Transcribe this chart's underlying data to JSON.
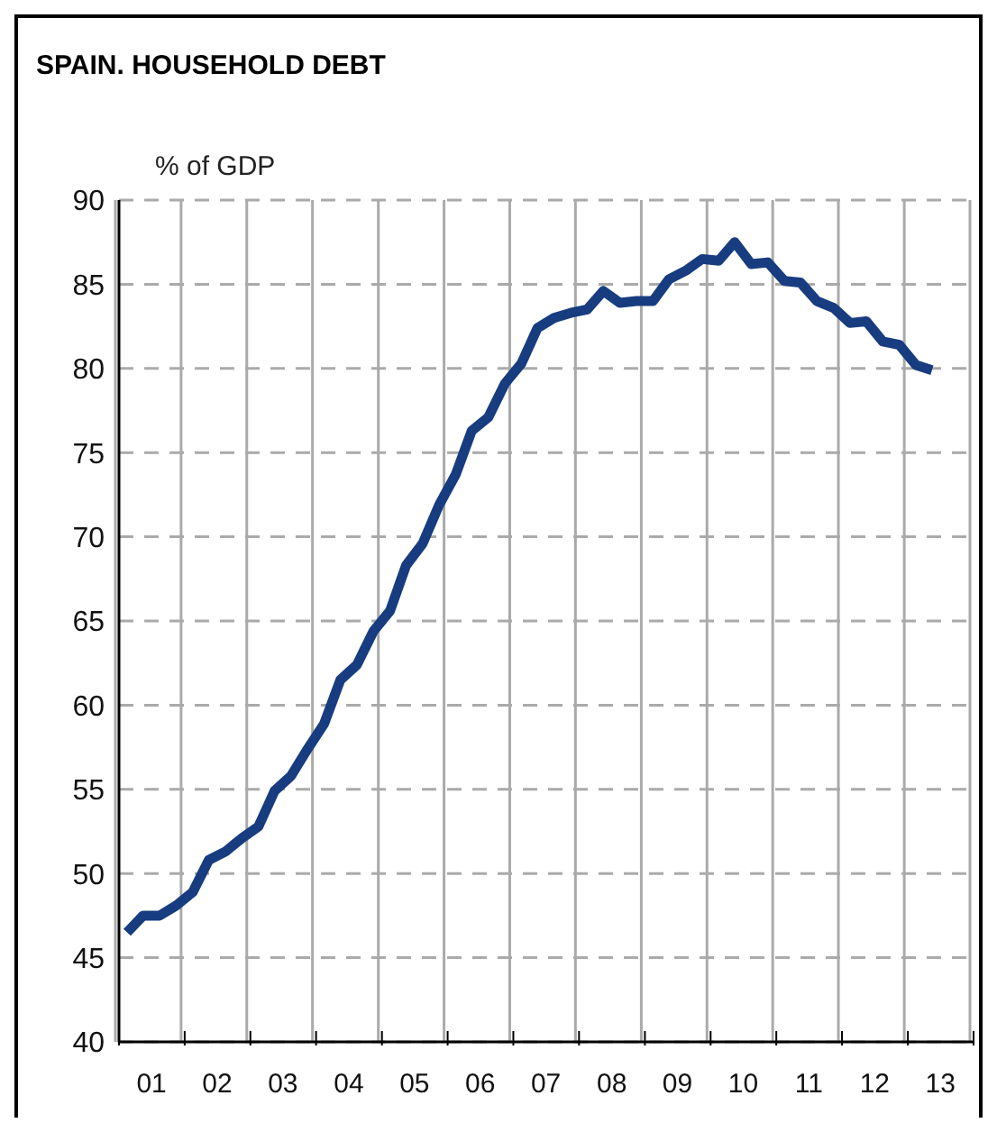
{
  "chart_data": {
    "type": "line",
    "title": "SPAIN. HOUSEHOLD DEBT",
    "ylabel": "% of GDP",
    "x": [
      "2001-02-15",
      "2001-05-15",
      "2001-08-15",
      "2001-11-15",
      "2002-02-15",
      "2002-05-15",
      "2002-08-15",
      "2002-11-15",
      "2003-02-15",
      "2003-05-15",
      "2003-08-15",
      "2003-11-15",
      "2004-02-15",
      "2004-05-15",
      "2004-08-15",
      "2004-11-15",
      "2005-02-15",
      "2005-05-15",
      "2005-08-15",
      "2005-11-15",
      "2006-02-15",
      "2006-05-15",
      "2006-08-15",
      "2006-11-15",
      "2007-02-15",
      "2007-05-15",
      "2007-08-15",
      "2007-11-15",
      "2008-02-15",
      "2008-05-15",
      "2008-08-15",
      "2008-11-15",
      "2009-02-15",
      "2009-05-15",
      "2009-08-15",
      "2009-11-15",
      "2010-02-15",
      "2010-05-15",
      "2010-08-15",
      "2010-11-15",
      "2011-02-15",
      "2011-05-15",
      "2011-08-15",
      "2011-11-15",
      "2012-02-15",
      "2012-05-15",
      "2012-08-15",
      "2012-11-15",
      "2013-02-15",
      "2013-05-15"
    ],
    "series": [
      {
        "color": "#173c7f",
        "values": [
          46.5,
          47.5,
          47.5,
          48.1,
          48.9,
          50.8,
          51.3,
          52.1,
          52.8,
          54.9,
          55.8,
          57.4,
          58.9,
          61.5,
          62.4,
          64.4,
          65.6,
          68.3,
          69.6,
          71.9,
          73.7,
          76.3,
          77.1,
          79.1,
          80.3,
          82.4,
          83.0,
          83.3,
          83.5,
          84.6,
          83.9,
          84.0,
          84.0,
          85.3,
          85.8,
          86.5,
          86.4,
          87.5,
          86.2,
          86.3,
          85.2,
          85.1,
          84.0,
          83.6,
          82.7,
          82.8,
          81.6,
          81.4,
          80.2,
          79.9
        ]
      }
    ],
    "xlim": [
      "2001-01-01",
      "2014-01-01"
    ],
    "xticks": [
      {
        "value": "2001-01-01",
        "label": null
      },
      {
        "value": "2001-07-01",
        "label": "01"
      },
      {
        "value": "2002-01-01",
        "label": null
      },
      {
        "value": "2002-07-01",
        "label": "02"
      },
      {
        "value": "2003-01-01",
        "label": null
      },
      {
        "value": "2003-07-01",
        "label": "03"
      },
      {
        "value": "2004-01-01",
        "label": null
      },
      {
        "value": "2004-07-01",
        "label": "04"
      },
      {
        "value": "2005-01-01",
        "label": null
      },
      {
        "value": "2005-07-01",
        "label": "05"
      },
      {
        "value": "2006-01-01",
        "label": null
      },
      {
        "value": "2006-07-01",
        "label": "06"
      },
      {
        "value": "2007-01-01",
        "label": null
      },
      {
        "value": "2007-07-01",
        "label": "07"
      },
      {
        "value": "2008-01-01",
        "label": null
      },
      {
        "value": "2008-07-01",
        "label": "08"
      },
      {
        "value": "2009-01-01",
        "label": null
      },
      {
        "value": "2009-07-01",
        "label": "09"
      },
      {
        "value": "2010-01-01",
        "label": null
      },
      {
        "value": "2010-07-01",
        "label": "10"
      },
      {
        "value": "2011-01-01",
        "label": null
      },
      {
        "value": "2011-07-01",
        "label": "11"
      },
      {
        "value": "2012-01-01",
        "label": null
      },
      {
        "value": "2012-07-01",
        "label": "12"
      },
      {
        "value": "2013-01-01",
        "label": null
      },
      {
        "value": "2013-07-01",
        "label": "13"
      },
      {
        "value": "2014-01-01",
        "label": null
      }
    ],
    "ylim": [
      40,
      90
    ],
    "yticks": [
      40,
      45,
      50,
      55,
      60,
      65,
      70,
      75,
      80,
      85,
      90
    ],
    "grid": true,
    "marker": "none",
    "line_style": "solid"
  }
}
